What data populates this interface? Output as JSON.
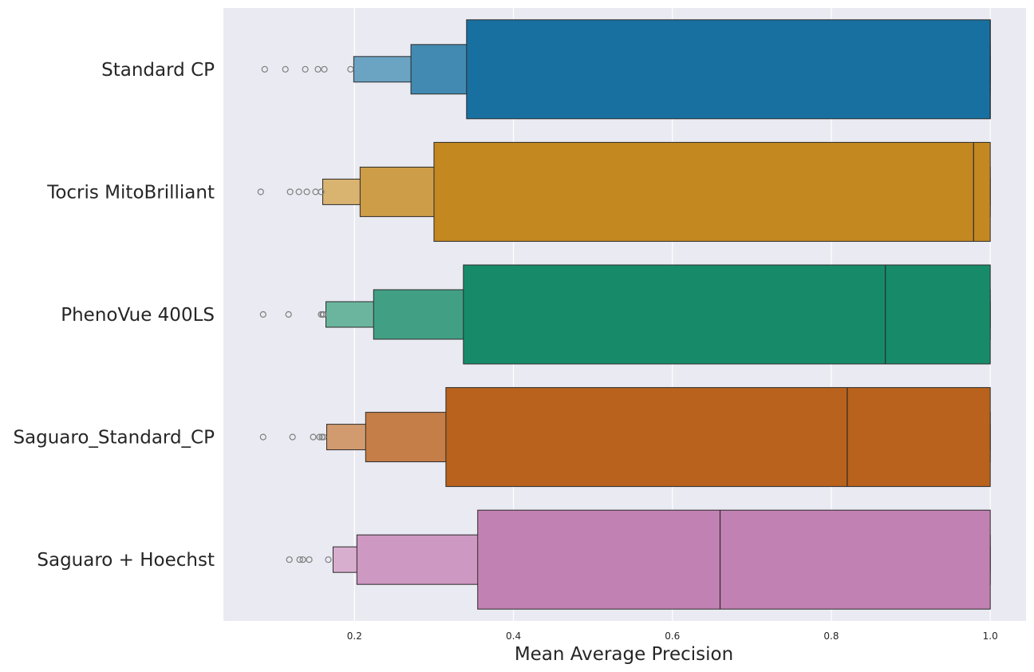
{
  "chart_data": {
    "type": "boxenplot",
    "orientation": "horizontal",
    "xlabel": "Mean Average Precision",
    "xlim": [
      0.035,
      1.045
    ],
    "xticks": [
      0.2,
      0.4,
      0.6,
      0.8,
      1.0
    ],
    "xtick_labels": [
      "0.2",
      "0.4",
      "0.6",
      "0.8",
      "1.0"
    ],
    "grid": true,
    "background": "#eaeaf2",
    "categories": [
      "Standard CP",
      "Tocris MitoBrilliant",
      "PhenoVue 400LS",
      "Saguaro_Standard_CP",
      "Saguaro + Hoechst"
    ],
    "series": [
      {
        "category": "Standard CP",
        "color": "#1870a0",
        "median": 1.0,
        "levels": [
          [
            0.341,
            1.0
          ],
          [
            0.271,
            1.0
          ],
          [
            0.199,
            1.0
          ]
        ],
        "outliers": [
          0.087,
          0.113,
          0.138,
          0.154,
          0.162,
          0.195
        ]
      },
      {
        "category": "Tocris MitoBrilliant",
        "color": "#c38820",
        "median": 0.979,
        "levels": [
          [
            0.3,
            1.0
          ],
          [
            0.207,
            1.0
          ],
          [
            0.16,
            1.0
          ]
        ],
        "outliers": [
          0.082,
          0.119,
          0.13,
          0.14,
          0.151,
          0.158
        ]
      },
      {
        "category": "PhenoVue 400LS",
        "color": "#178b69",
        "median": 0.868,
        "levels": [
          [
            0.337,
            1.0
          ],
          [
            0.224,
            1.0
          ],
          [
            0.164,
            1.0
          ]
        ],
        "outliers": [
          0.085,
          0.117,
          0.158,
          0.16,
          0.161
        ]
      },
      {
        "category": "Saguaro_Standard_CP",
        "color": "#b8621e",
        "median": 0.82,
        "levels": [
          [
            0.315,
            1.0
          ],
          [
            0.214,
            1.0
          ],
          [
            0.165,
            1.0
          ]
        ],
        "outliers": [
          0.085,
          0.122,
          0.148,
          0.156,
          0.159,
          0.161
        ]
      },
      {
        "category": "Saguaro + Hoechst",
        "color": "#c281b3",
        "median": 0.66,
        "levels": [
          [
            0.355,
            1.0
          ],
          [
            0.203,
            1.0
          ],
          [
            0.173,
            1.0
          ]
        ],
        "outliers": [
          0.118,
          0.131,
          0.135,
          0.143,
          0.167
        ]
      }
    ]
  }
}
